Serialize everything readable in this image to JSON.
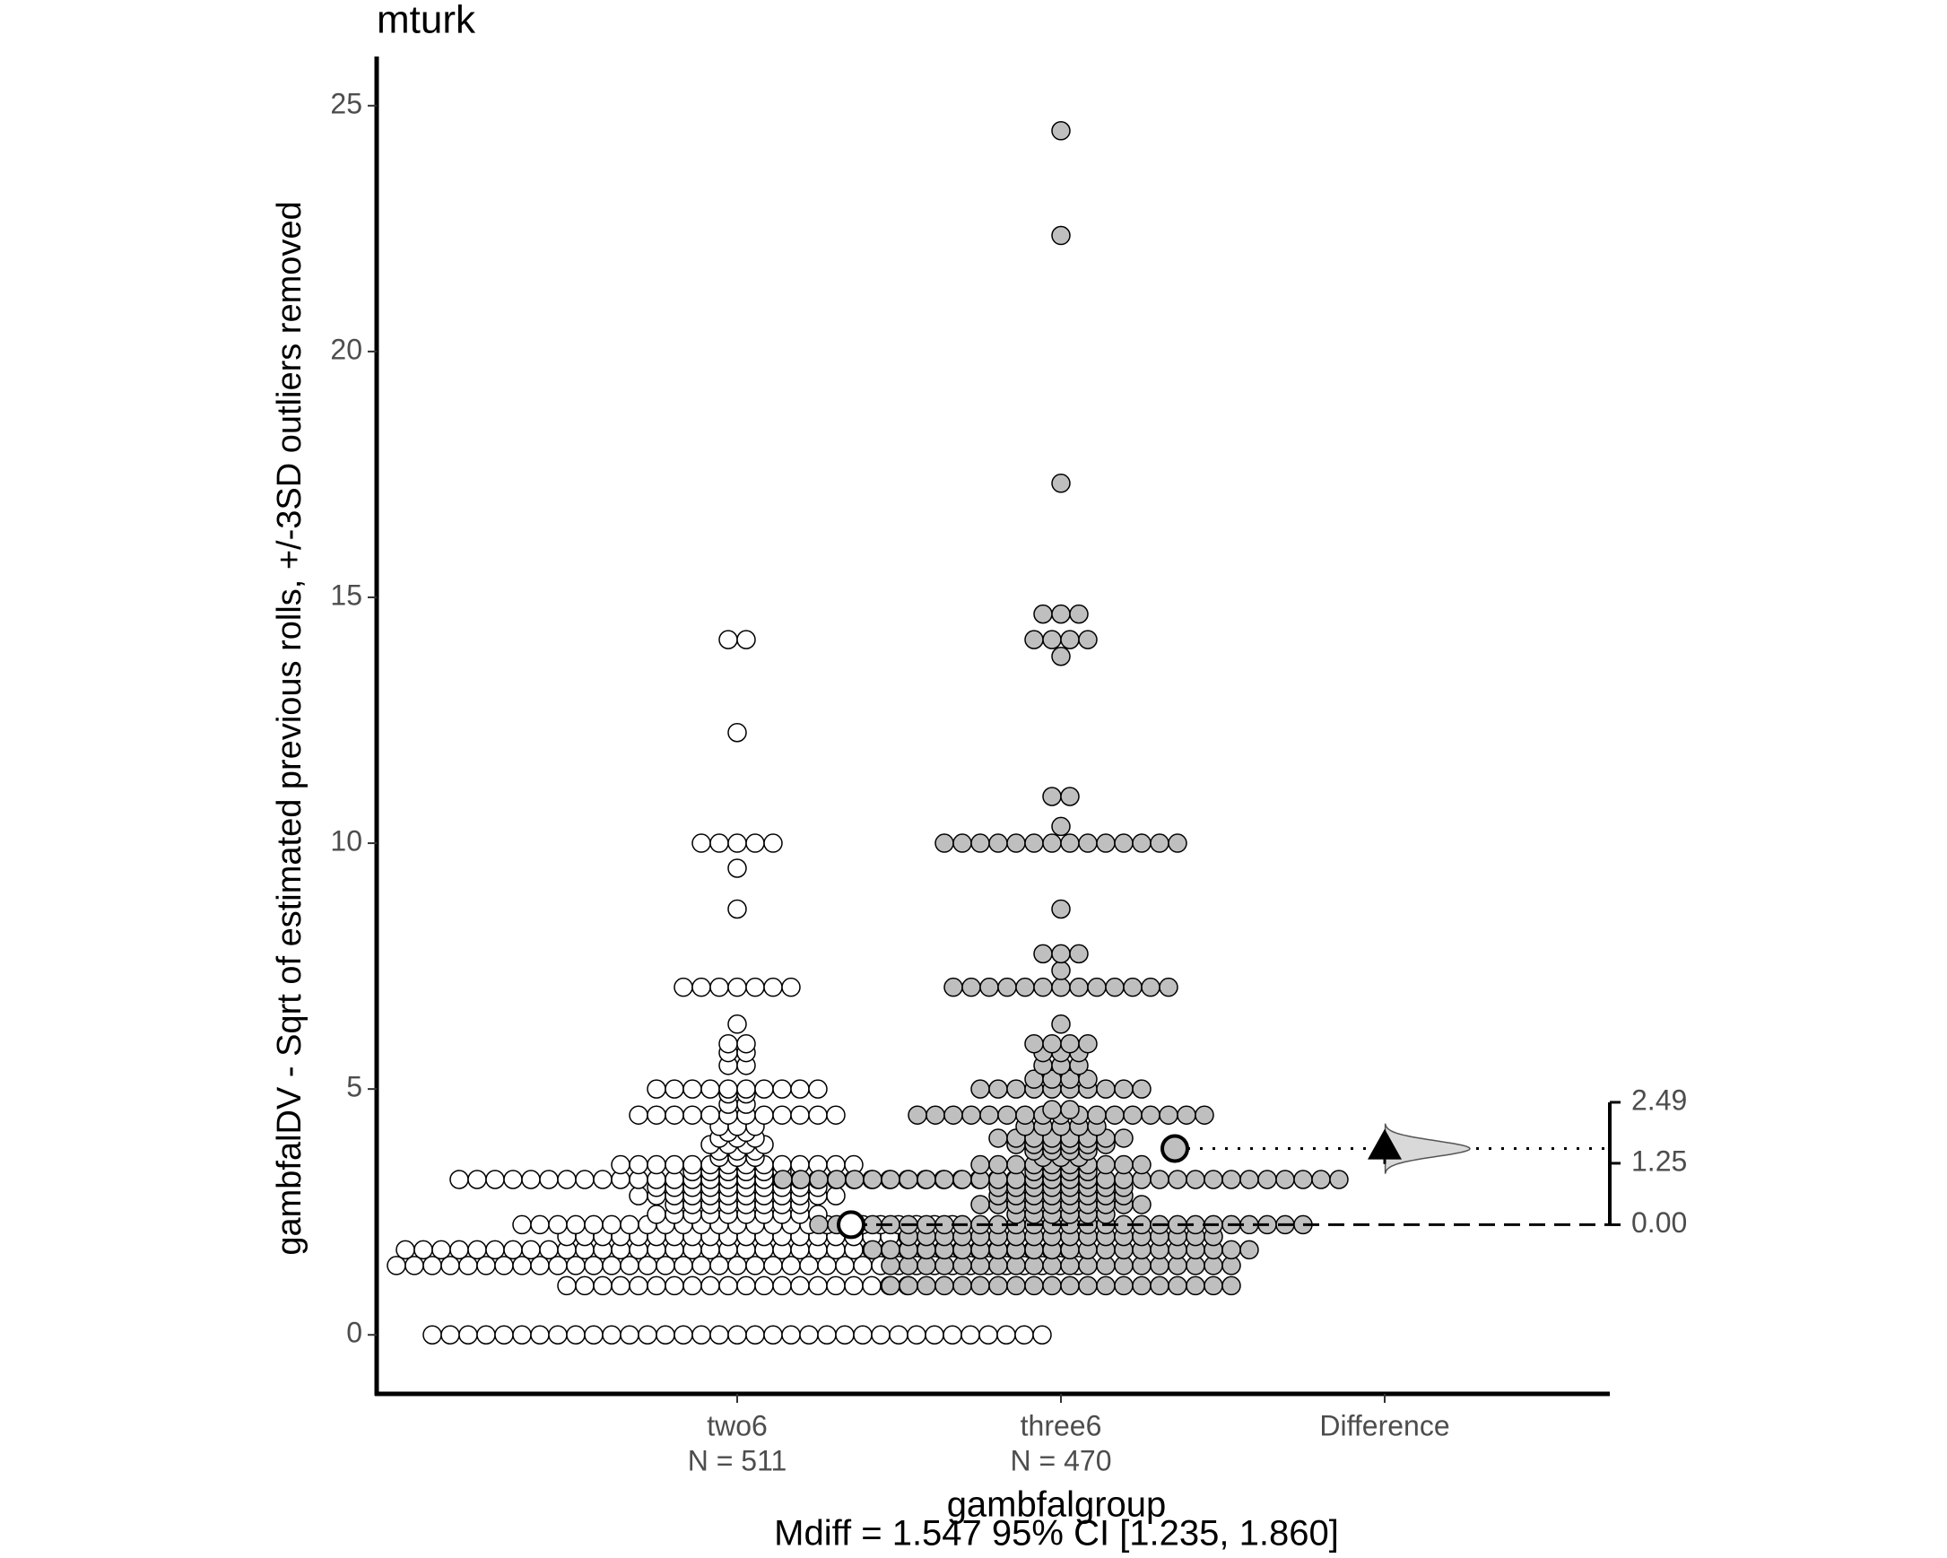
{
  "chart_data": {
    "type": "estimation",
    "title": "mturk",
    "y_label": "gambfalDV - Sqrt of estimated previous rolls, +/-3SD outliers removed",
    "x_label": "gambfalgroup",
    "caption": "Mdiff = 1.547 95% CI [1.235, 1.860]",
    "categories": [
      "two6",
      "three6",
      "Difference"
    ],
    "n_labels": [
      "N =  511",
      "N =  470"
    ],
    "ylim": [
      -1.2,
      26
    ],
    "yticks": [
      0,
      5,
      10,
      15,
      20,
      25
    ],
    "y2lim": [
      0,
      2.49
    ],
    "y2ticks": [
      {
        "value": 0,
        "label": "0.00"
      },
      1.25,
      2.49
    ],
    "groups": [
      {
        "name": "two6",
        "color": "#ffffff",
        "mean": 2.24,
        "levels": [
          0,
          1,
          1.41,
          1.73,
          2,
          2.24,
          2.45,
          2.65,
          2.83,
          3,
          3.16,
          3.32,
          3.46,
          3.61,
          3.74,
          3.87,
          4,
          4.12,
          4.24,
          4.47,
          4.69,
          4.9,
          5,
          5.48,
          5.74,
          5.92,
          6.32,
          7.07,
          8.66,
          9.49,
          10,
          12.25,
          14.14
        ],
        "counts": [
          35,
          20,
          39,
          38,
          20,
          25,
          10,
          8,
          12,
          10,
          32,
          6,
          14,
          3,
          3,
          4,
          3,
          2,
          3,
          12,
          2,
          2,
          10,
          2,
          2,
          2,
          1,
          7,
          1,
          1,
          5,
          1,
          2
        ]
      },
      {
        "name": "three6",
        "color": "#bfbfbf",
        "mean": 3.79,
        "levels": [
          1,
          1.41,
          1.73,
          2,
          2.24,
          2.45,
          2.65,
          2.83,
          3,
          3.16,
          3.32,
          3.46,
          3.61,
          3.74,
          3.87,
          4,
          4.24,
          4.47,
          4.58,
          5,
          5.2,
          5.48,
          5.74,
          5.92,
          6.32,
          7.07,
          7.41,
          7.75,
          8.66,
          10,
          10.34,
          10.95,
          13.8,
          14.14,
          14.66,
          17.32,
          22.36,
          24.49
        ],
        "counts": [
          20,
          20,
          22,
          18,
          28,
          6,
          10,
          8,
          8,
          32,
          4,
          10,
          3,
          4,
          6,
          8,
          5,
          17,
          2,
          10,
          4,
          3,
          3,
          4,
          1,
          13,
          1,
          3,
          1,
          14,
          1,
          2,
          1,
          4,
          3,
          1,
          1,
          1
        ]
      }
    ],
    "difference": {
      "value": 1.547,
      "ci": [
        1.235,
        1.86
      ]
    }
  }
}
